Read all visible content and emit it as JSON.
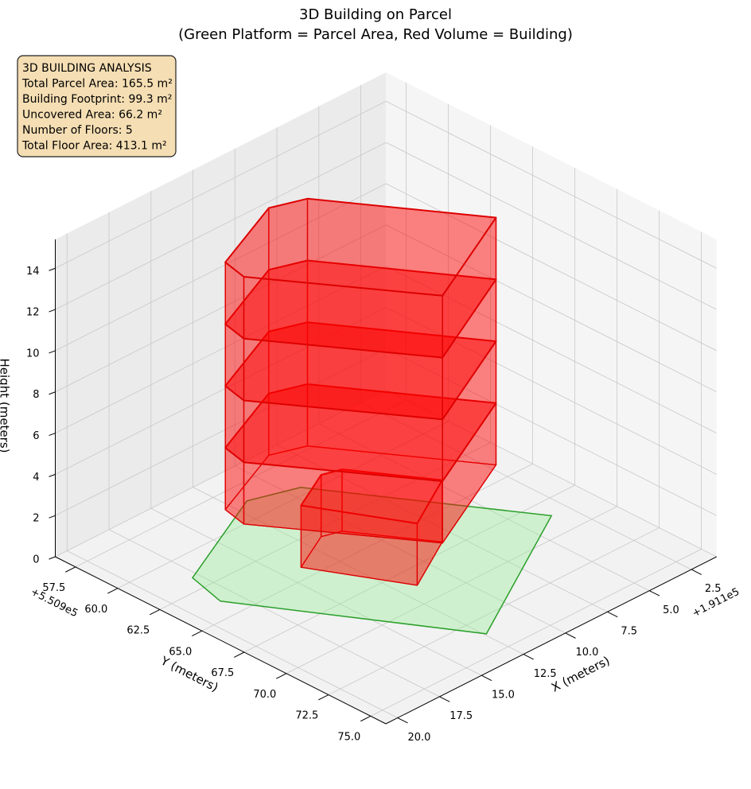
{
  "chart_data": {
    "type": "building3d",
    "title": "3D Building on Parcel",
    "subtitle": "(Green Platform = Parcel Area, Red Volume = Building)",
    "xlabel": "X (meters)",
    "ylabel": "Y (meters)",
    "zlabel": "Height (meters)",
    "x_offset_label": "+1.911e5",
    "y_offset_label": "+5.509e5",
    "xlim": [
      1.0,
      20.7
    ],
    "ylim": [
      56.3,
      75.9
    ],
    "zlim": [
      0,
      15.4
    ],
    "xticks": [
      2.5,
      {
        "value": 5,
        "label": "5.0"
      },
      7.5,
      {
        "value": 10,
        "label": "10.0"
      },
      12.5,
      {
        "value": 15,
        "label": "15.0"
      },
      17.5,
      {
        "value": 20,
        "label": "20.0"
      }
    ],
    "yticks": [
      57.5,
      {
        "value": 60,
        "label": "60.0"
      },
      62.5,
      {
        "value": 65,
        "label": "65.0"
      },
      67.5,
      {
        "value": 70,
        "label": "70.0"
      },
      72.5,
      {
        "value": 75,
        "label": "75.0"
      }
    ],
    "zticks": [
      0,
      2,
      4,
      6,
      8,
      10,
      12,
      14
    ],
    "grid": true,
    "annotation": [
      "3D BUILDING ANALYSIS",
      "Total Parcel Area: 165.5 m²",
      "Building Footprint: 99.3 m²",
      "Uncovered Area: 66.2 m²",
      "Number of Floors: 5",
      "Total Floor Area: 413.1 m²"
    ],
    "parcel": {
      "color": "#90ee90",
      "edgecolor": "#2ca02c",
      "x": [
        17.85,
        18.4,
        12.4,
        3.5,
        9.3,
        11.7
      ],
      "y": [
        61.6,
        63.8,
        73.6,
        68.6,
        59.5,
        58.7
      ]
    },
    "building": {
      "color": "#ff0000",
      "edgecolor": "#dd0000",
      "floors": [
        {
          "base": 0,
          "top": 3,
          "x": [
            14.0,
            11.6,
            10.65,
            8.3,
            11.6
          ],
          "y": [
            64.2,
            63.0,
            63.3,
            66.9,
            68.7
          ]
        },
        {
          "base": 3,
          "top": 6,
          "x": [
            16.5,
            12.0,
            10.3,
            5.8,
            12.0,
            16.8
          ],
          "y": [
            62.2,
            60.3,
            60.9,
            67.6,
            70.6,
            63.6
          ]
        },
        {
          "base": 6,
          "top": 9,
          "x": [
            16.5,
            12.0,
            10.3,
            5.8,
            12.0,
            16.8
          ],
          "y": [
            62.2,
            60.3,
            60.9,
            67.6,
            70.6,
            63.6
          ]
        },
        {
          "base": 9,
          "top": 12,
          "x": [
            16.5,
            12.0,
            10.3,
            5.8,
            12.0,
            16.8
          ],
          "y": [
            62.2,
            60.3,
            60.9,
            67.6,
            70.6,
            63.6
          ]
        },
        {
          "base": 12,
          "top": 15,
          "x": [
            16.5,
            12.0,
            10.3,
            5.8,
            12.0,
            16.8
          ],
          "y": [
            62.2,
            60.3,
            60.9,
            67.6,
            70.6,
            63.6
          ]
        }
      ]
    }
  }
}
